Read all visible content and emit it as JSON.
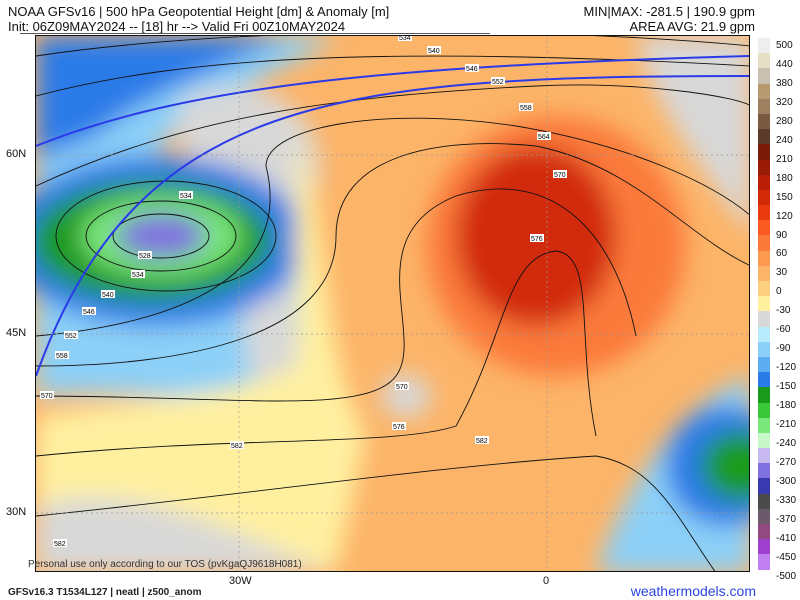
{
  "header": {
    "title": "NOAA GFSv16 |  500 hPa Geopotential Height [dm] & Anomaly [m]",
    "init": "Init: 06Z09MAY2024 -- [18] hr --> Valid Fri 00Z10MAY2024",
    "minmax": "MIN|MAX: -281.5 | 190.9 gpm",
    "area_avg": "AREA AVG: 21.9 gpm"
  },
  "map": {
    "lat_labels": [
      "60N",
      "45N",
      "30N"
    ],
    "lon_labels": [
      "30W",
      "0"
    ],
    "contour_labels": [
      "534",
      "540",
      "546",
      "552",
      "558",
      "564",
      "570",
      "576",
      "534",
      "528",
      "534",
      "540",
      "546",
      "552",
      "558",
      "570",
      "570",
      "576",
      "582",
      "582",
      "582"
    ],
    "anomaly_colors": {
      "strong_positive": "#c92a0a",
      "positive": "#f7a45e",
      "weak_positive": "#fde9a0",
      "neutral": "#d9d9d9",
      "negative": "#3a8ee8",
      "strong_negative": "#1ea524",
      "extreme_negative": "#8a78e0"
    }
  },
  "colorbar": {
    "labels": [
      "500",
      "440",
      "380",
      "320",
      "280",
      "240",
      "210",
      "180",
      "150",
      "120",
      "90",
      "60",
      "30",
      "0",
      "-30",
      "-60",
      "-90",
      "-120",
      "-150",
      "-180",
      "-210",
      "-240",
      "-270",
      "-300",
      "-330",
      "-370",
      "-410",
      "-450",
      "-500"
    ],
    "colors": [
      "#eeeeee",
      "#e6dfc6",
      "#c8c0b0",
      "#b89a70",
      "#9c8060",
      "#7a5a40",
      "#5a3a2a",
      "#7a1a08",
      "#9a1a08",
      "#b81e08",
      "#d22a08",
      "#ea3a10",
      "#f85a20",
      "#fb7a3a",
      "#fb9a50",
      "#fcb468",
      "#fdd080",
      "#fff0a0",
      "#d8d8d8",
      "#b8ecfc",
      "#8cd0f8",
      "#5cacf0",
      "#2a7ae8",
      "#1a9a1a",
      "#3ac83a",
      "#7ae87a",
      "#c8f8c8",
      "#c8b8f0",
      "#8070e0",
      "#3a3ab0",
      "#4a4a4a",
      "#6a5a6a",
      "#904a80",
      "#a040d0",
      "#c080f0"
    ]
  },
  "footer": {
    "tos": "Personal use only according to our TOS (pvKgaQJ9618H081)",
    "model": "GFSv16.3 T1534L127 | neatl | z500_anom",
    "brand": "weathermodels.com"
  }
}
